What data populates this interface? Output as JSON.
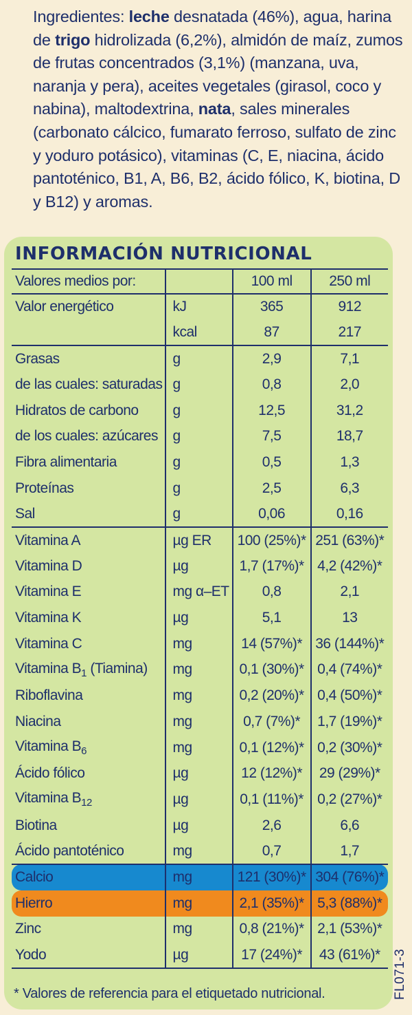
{
  "ingredients": {
    "lead": "Ingredientes: ",
    "w1": "leche",
    "t1": " desnatada (46%), agua, harina de ",
    "w2": "trigo",
    "t2": " hidrolizada (6,2%), almidón de maíz, zumos de frutas concentrados (3,1%) (manzana, uva, naranja y pera), aceites vegetales (girasol, coco y nabina), maltodextrina, ",
    "w3": "nata",
    "t3": ", sales minerales (carbonato cálcico, fumarato ferroso, sulfato de zinc y yoduro potásico), vitaminas (C, E, niacina, ácido pantoténico, B1, A, B6, B2, ácido fólico, K, biotina, D y B12) y aromas."
  },
  "title": "INFORMACIÓN NUTRICIONAL",
  "header": {
    "label": "Valores medios por:",
    "col1": "100 ml",
    "col2": "250 ml"
  },
  "rows": [
    {
      "name": "Valor energético",
      "unit": "kJ",
      "v100": "365",
      "v250": "912"
    },
    {
      "name": "",
      "unit": "kcal",
      "v100": "87",
      "v250": "217"
    },
    {
      "name": "Grasas",
      "unit": "g",
      "v100": "2,9",
      "v250": "7,1"
    },
    {
      "name": "de las cuales: saturadas",
      "unit": "g",
      "v100": "0,8",
      "v250": "2,0"
    },
    {
      "name": "Hidratos de carbono",
      "unit": "g",
      "v100": "12,5",
      "v250": "31,2"
    },
    {
      "name": "de los cuales: azúcares",
      "unit": "g",
      "v100": "7,5",
      "v250": "18,7"
    },
    {
      "name": "Fibra alimentaria",
      "unit": "g",
      "v100": "0,5",
      "v250": "1,3"
    },
    {
      "name": "Proteínas",
      "unit": "g",
      "v100": "2,5",
      "v250": "6,3"
    },
    {
      "name": "Sal",
      "unit": "g",
      "v100": "0,06",
      "v250": "0,16"
    },
    {
      "name": "Vitamina A",
      "unit": "µg ER",
      "v100": "100 (25%)*",
      "v250": "251 (63%)*"
    },
    {
      "name": "Vitamina D",
      "unit": "µg",
      "v100": "1,7 (17%)*",
      "v250": "4,2 (42%)*"
    },
    {
      "name": "Vitamina E",
      "unit": "mg α–ET",
      "v100": "0,8",
      "v250": "2,1"
    },
    {
      "name": "Vitamina K",
      "unit": "µg",
      "v100": "5,1",
      "v250": "13"
    },
    {
      "name": "Vitamina C",
      "unit": "mg",
      "v100": "14 (57%)*",
      "v250": "36 (144%)*"
    },
    {
      "name": "Vitamina B",
      "sub": "1",
      "suffix": " (Tiamina)",
      "unit": "mg",
      "v100": "0,1 (30%)*",
      "v250": "0,4 (74%)*"
    },
    {
      "name": "Riboflavina",
      "unit": "mg",
      "v100": "0,2 (20%)*",
      "v250": "0,4 (50%)*"
    },
    {
      "name": "Niacina",
      "unit": "mg",
      "v100": "0,7 (7%)*",
      "v250": "1,7 (19%)*"
    },
    {
      "name": "Vitamina B",
      "sub": "6",
      "unit": "mg",
      "v100": "0,1 (12%)*",
      "v250": "0,2 (30%)*"
    },
    {
      "name": "Ácido fólico",
      "unit": "µg",
      "v100": "12 (12%)*",
      "v250": "29 (29%)*"
    },
    {
      "name": "Vitamina B",
      "sub": "12",
      "unit": "µg",
      "v100": "0,1 (11%)*",
      "v250": "0,2 (27%)*"
    },
    {
      "name": "Biotina",
      "unit": "µg",
      "v100": "2,6",
      "v250": "6,6"
    },
    {
      "name": "Ácido pantoténico",
      "unit": "mg",
      "v100": "0,7",
      "v250": "1,7"
    },
    {
      "name": "Calcio",
      "unit": "mg",
      "v100": "121 (30%)*",
      "v250": "304 (76%)*"
    },
    {
      "name": "Hierro",
      "unit": "mg",
      "v100": "2,1 (35%)*",
      "v250": "5,3 (88%)*"
    },
    {
      "name": "Zinc",
      "unit": "mg",
      "v100": "0,8 (21%)*",
      "v250": "2,1 (53%)*"
    },
    {
      "name": "Yodo",
      "unit": "µg",
      "v100": "17 (24%)*",
      "v250": "43 (61%)*"
    }
  ],
  "footnote": "* Valores de referencia para el etiquetado nutricional.",
  "code": "FL071-3",
  "colors": {
    "text": "#1e2f6b",
    "background": "#f8eed7",
    "panel": "#d4e6a2",
    "calcio": "#1789cf",
    "hierro": "#f08a1e"
  }
}
